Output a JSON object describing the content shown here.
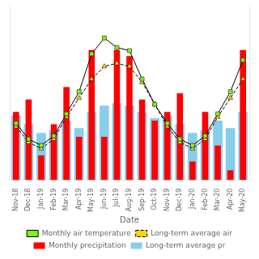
{
  "chart_data": {
    "type": "bar",
    "xlabel": "Date",
    "categories": [
      "Nov-18",
      "Dec-18",
      "Jan-19",
      "Feb-19",
      "Mar-19",
      "Apr-19",
      "May-19",
      "Jun-19",
      "Jul-19",
      "Aug-19",
      "Sep-19",
      "Oct-19",
      "Nov-19",
      "Dec-19",
      "Jan-20",
      "Feb-20",
      "Mar-20",
      "Apr-20",
      "May-20"
    ],
    "series": [
      {
        "name": "Monthly precipitation",
        "type": "bar",
        "color": "#FF0000",
        "values": [
          55,
          65,
          20,
          45,
          75,
          35,
          105,
          35,
          105,
          100,
          65,
          48,
          55,
          70,
          15,
          55,
          28,
          8,
          105
        ]
      },
      {
        "name": "Long-term average pr",
        "type": "bar",
        "color": "#87CEEB",
        "values": [
          52,
          45,
          38,
          40,
          48,
          42,
          55,
          60,
          62,
          60,
          55,
          50,
          52,
          45,
          38,
          40,
          48,
          42,
          55
        ]
      },
      {
        "name": "Monthly air temperature",
        "type": "line",
        "axis": "y2",
        "color": "#7CFC00",
        "marker": "square",
        "line_style": "solid",
        "values": [
          8,
          3,
          1,
          4,
          11,
          18,
          30,
          35,
          32,
          31,
          22,
          14,
          8,
          3,
          1,
          4,
          11,
          18,
          28
        ]
      },
      {
        "name": "Long-term average air",
        "type": "line",
        "axis": "y2",
        "color": "#FFD700",
        "marker": "triangle",
        "line_style": "dashed",
        "values": [
          7,
          2,
          0,
          3,
          10,
          16,
          22,
          26,
          27,
          26,
          21,
          14,
          7,
          2,
          0,
          3,
          10,
          16,
          22
        ]
      }
    ],
    "ylim": [
      0,
      140
    ],
    "y2lim": [
      -10,
      45
    ],
    "grid": false,
    "legend": "bottom",
    "tick_labels": "x"
  }
}
